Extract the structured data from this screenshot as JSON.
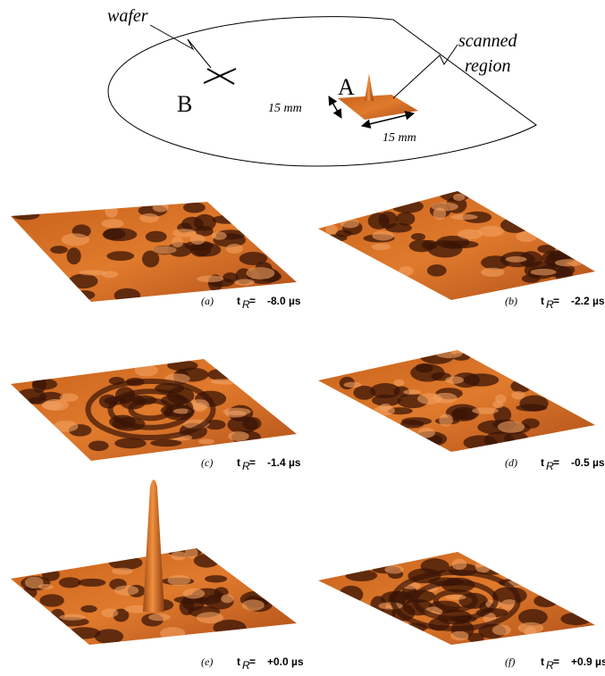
{
  "diagram": {
    "wafer_label": "wafer",
    "scanned_label": [
      "scanned",
      "region"
    ],
    "point_a": "A",
    "point_b": "B",
    "dimension_1": "15 mm",
    "dimension_2": "15 mm"
  },
  "symbol": {
    "t": "t",
    "sub": "R",
    "eq": "="
  },
  "panels": [
    {
      "label": "(a)",
      "time": "-8.0 µs"
    },
    {
      "label": "(b)",
      "time": "-2.2 µs"
    },
    {
      "label": "(c)",
      "time": "-1.4 µs"
    },
    {
      "label": "(d)",
      "time": "-0.5 µs"
    },
    {
      "label": "(e)",
      "time": "+0.0 µs"
    },
    {
      "label": "(f)",
      "time": "+0.9 µs"
    }
  ]
}
